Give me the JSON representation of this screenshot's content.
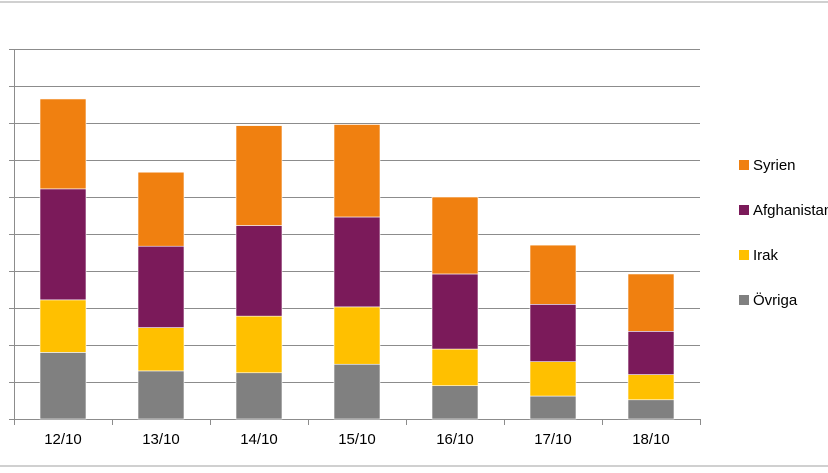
{
  "chart_data": {
    "type": "bar",
    "stacked": true,
    "categories": [
      "12/10",
      "13/10",
      "14/10",
      "15/10",
      "16/10",
      "17/10",
      "18/10"
    ],
    "series": [
      {
        "name": "Övriga",
        "color": "#808080",
        "values": [
          180,
          130,
          125,
          148,
          90,
          62,
          52
        ]
      },
      {
        "name": "Irak",
        "color": "#FFC000",
        "values": [
          142,
          117,
          153,
          155,
          99,
          93,
          68
        ]
      },
      {
        "name": "Afghanistan",
        "color": "#7B1A5A",
        "values": [
          300,
          220,
          245,
          243,
          203,
          155,
          117
        ]
      },
      {
        "name": "Syrien",
        "color": "#F08010",
        "values": [
          243,
          200,
          270,
          250,
          208,
          160,
          155
        ]
      }
    ],
    "ylim": [
      0,
      1000
    ],
    "grid": true,
    "legend_position": "right",
    "legend_order": [
      "Syrien",
      "Afghanistan",
      "Irak",
      "Övriga"
    ],
    "colors": {
      "gridline": "#8C8C8C",
      "axis": "#8C8C8C",
      "frame": "#A0A0A0"
    }
  }
}
